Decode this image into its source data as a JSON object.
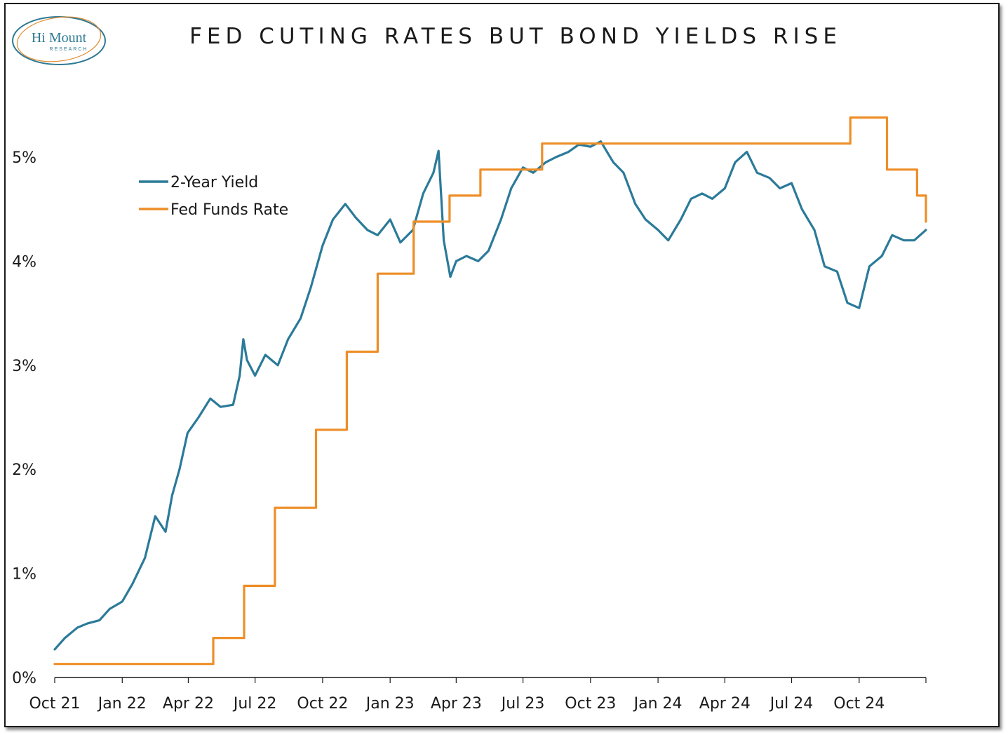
{
  "logo": {
    "line1": "Hi Mount",
    "line2": "RESEARCH",
    "color": "#2e7a93",
    "ring_color": "#e08a2e"
  },
  "chart_data": {
    "type": "line",
    "title": "FED CUTING RATES BUT BOND YIELDS RISE",
    "xlabel": "",
    "ylabel": "",
    "ylim": [
      0,
      5.5
    ],
    "xlim": [
      "2021-10-01",
      "2024-12-31"
    ],
    "y_ticks": [
      0,
      1,
      2,
      3,
      4,
      5
    ],
    "y_tick_labels": [
      "0%",
      "1%",
      "2%",
      "3%",
      "4%",
      "5%"
    ],
    "x_ticks": [
      "2021-10-01",
      "2022-01-01",
      "2022-04-01",
      "2022-07-01",
      "2022-10-01",
      "2023-01-01",
      "2023-04-01",
      "2023-07-01",
      "2023-10-01",
      "2024-01-01",
      "2024-04-01",
      "2024-07-01",
      "2024-10-01"
    ],
    "x_tick_labels": [
      "Oct 21",
      "Jan 22",
      "Apr 22",
      "Jul 22",
      "Oct 22",
      "Jan 23",
      "Apr 23",
      "Jul 23",
      "Oct 23",
      "Jan 24",
      "Apr 24",
      "Jul 24",
      "Oct 24"
    ],
    "grid": false,
    "legend": "top-left",
    "series": [
      {
        "name": "2-Year Yield",
        "color": "#2b7a99",
        "step": false,
        "x": [
          "2021-10-01",
          "2021-10-15",
          "2021-11-01",
          "2021-11-15",
          "2021-12-01",
          "2021-12-15",
          "2022-01-01",
          "2022-01-15",
          "2022-02-01",
          "2022-02-15",
          "2022-03-01",
          "2022-03-10",
          "2022-03-20",
          "2022-03-31",
          "2022-04-15",
          "2022-05-01",
          "2022-05-15",
          "2022-06-01",
          "2022-06-10",
          "2022-06-15",
          "2022-06-20",
          "2022-07-01",
          "2022-07-15",
          "2022-08-01",
          "2022-08-15",
          "2022-09-01",
          "2022-09-15",
          "2022-10-01",
          "2022-10-15",
          "2022-11-01",
          "2022-11-15",
          "2022-12-01",
          "2022-12-15",
          "2023-01-01",
          "2023-01-15",
          "2023-02-01",
          "2023-02-15",
          "2023-03-01",
          "2023-03-08",
          "2023-03-15",
          "2023-03-24",
          "2023-04-01",
          "2023-04-15",
          "2023-05-01",
          "2023-05-15",
          "2023-06-01",
          "2023-06-15",
          "2023-07-01",
          "2023-07-15",
          "2023-08-01",
          "2023-08-15",
          "2023-09-01",
          "2023-09-15",
          "2023-10-01",
          "2023-10-15",
          "2023-11-01",
          "2023-11-15",
          "2023-12-01",
          "2023-12-15",
          "2024-01-01",
          "2024-01-15",
          "2024-02-01",
          "2024-02-15",
          "2024-03-01",
          "2024-03-15",
          "2024-04-01",
          "2024-04-15",
          "2024-05-01",
          "2024-05-15",
          "2024-06-01",
          "2024-06-15",
          "2024-07-01",
          "2024-07-15",
          "2024-08-01",
          "2024-08-15",
          "2024-09-01",
          "2024-09-15",
          "2024-10-01",
          "2024-10-15",
          "2024-11-01",
          "2024-11-15",
          "2024-12-01",
          "2024-12-15",
          "2024-12-31"
        ],
        "values": [
          0.27,
          0.38,
          0.48,
          0.52,
          0.55,
          0.66,
          0.73,
          0.9,
          1.15,
          1.55,
          1.4,
          1.75,
          2.0,
          2.35,
          2.5,
          2.68,
          2.6,
          2.62,
          2.9,
          3.25,
          3.05,
          2.9,
          3.1,
          3.0,
          3.25,
          3.45,
          3.75,
          4.15,
          4.4,
          4.55,
          4.42,
          4.3,
          4.25,
          4.4,
          4.18,
          4.3,
          4.65,
          4.85,
          5.06,
          4.2,
          3.85,
          4.0,
          4.05,
          4.0,
          4.1,
          4.4,
          4.7,
          4.9,
          4.85,
          4.95,
          5.0,
          5.05,
          5.12,
          5.1,
          5.15,
          4.95,
          4.85,
          4.55,
          4.4,
          4.3,
          4.2,
          4.4,
          4.6,
          4.65,
          4.6,
          4.7,
          4.95,
          5.05,
          4.85,
          4.8,
          4.7,
          4.75,
          4.5,
          4.3,
          3.95,
          3.9,
          3.6,
          3.55,
          3.95,
          4.05,
          4.25,
          4.2,
          4.2,
          4.3
        ]
      },
      {
        "name": "Fed Funds Rate",
        "color": "#ee8e27",
        "step": true,
        "x": [
          "2021-10-01",
          "2022-03-17",
          "2022-05-05",
          "2022-06-16",
          "2022-07-28",
          "2022-09-22",
          "2022-11-03",
          "2022-12-15",
          "2023-02-02",
          "2023-03-23",
          "2023-05-04",
          "2023-07-27",
          "2024-09-19",
          "2024-11-08",
          "2024-12-19",
          "2024-12-31"
        ],
        "values": [
          0.13,
          0.13,
          0.38,
          0.88,
          1.63,
          2.38,
          3.13,
          3.88,
          4.38,
          4.63,
          4.88,
          5.13,
          5.38,
          4.88,
          4.63,
          4.38
        ]
      }
    ]
  }
}
